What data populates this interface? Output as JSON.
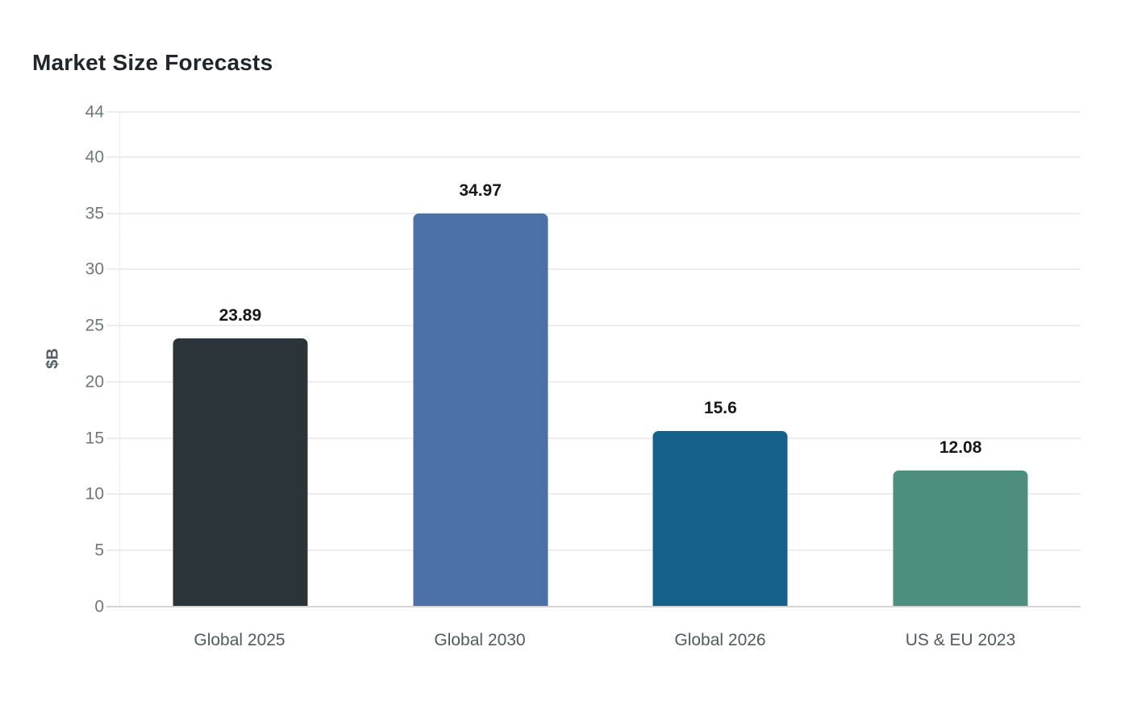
{
  "title": "Market Size Forecasts",
  "chart_data": {
    "type": "bar",
    "title": "Market Size Forecasts",
    "xlabel": "",
    "ylabel": "$B",
    "categories": [
      "Global 2025",
      "Global 2030",
      "Global 2026",
      "US & EU 2023"
    ],
    "values": [
      23.89,
      34.97,
      15.6,
      12.08
    ],
    "value_labels": [
      "23.89",
      "34.97",
      "15.6",
      "12.08"
    ],
    "bar_colors": [
      "#2b3438",
      "#4c70a8",
      "#16618b",
      "#4d8e7e"
    ],
    "yticks": [
      0,
      5,
      10,
      15,
      20,
      25,
      30,
      35,
      40,
      44
    ],
    "ylim": [
      0,
      44
    ],
    "grid": "horizontal",
    "gridline_color": "#ededed",
    "baseline_color": "#d2d5d5",
    "legend": "none",
    "background": "#ffffff"
  }
}
